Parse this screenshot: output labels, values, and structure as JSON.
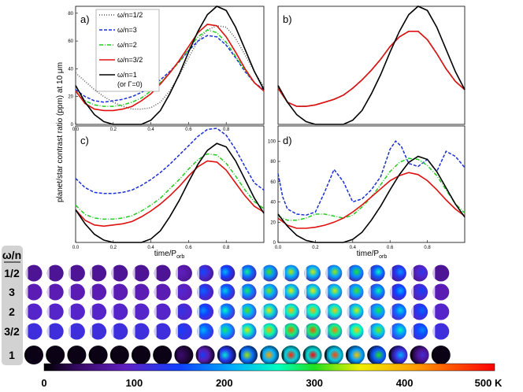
{
  "chart_data": [
    {
      "panel": "a)",
      "type": "line",
      "xlim": [
        0,
        1
      ],
      "ylim": [
        0,
        85
      ],
      "x_ticks": [
        "0.0",
        "0.2",
        "0.4",
        "0.6",
        "0.8"
      ],
      "y_ticks": [
        "0",
        "20",
        "40",
        "60",
        "80"
      ],
      "legend": [
        "ω/n=1/2",
        "ω/n=3",
        "ω/n=2",
        "ω/n=3/2",
        "ω/n=1",
        "(or Γ=0)"
      ],
      "series": [
        {
          "name": "ω/n=1/2",
          "color": "#555555",
          "style": "dotted",
          "x": [
            0,
            0.05,
            0.1,
            0.15,
            0.2,
            0.25,
            0.3,
            0.35,
            0.4,
            0.45,
            0.5,
            0.55,
            0.6,
            0.65,
            0.7,
            0.75,
            0.8,
            0.85,
            0.9,
            0.95,
            1.0
          ],
          "y": [
            37,
            31,
            25,
            20,
            16,
            13,
            11,
            11,
            12,
            16,
            24,
            35,
            48,
            60,
            68,
            71,
            70,
            62,
            50,
            38,
            27
          ]
        },
        {
          "name": "ω/n=3",
          "color": "#1a2fd6",
          "style": "dashed",
          "x": [
            0,
            0.05,
            0.1,
            0.15,
            0.2,
            0.25,
            0.3,
            0.35,
            0.4,
            0.45,
            0.5,
            0.55,
            0.6,
            0.65,
            0.7,
            0.75,
            0.8,
            0.85,
            0.9,
            0.95,
            1.0
          ],
          "y": [
            25,
            20,
            17,
            16,
            17,
            18,
            20,
            23,
            27,
            32,
            38,
            45,
            53,
            60,
            64,
            63,
            57,
            48,
            38,
            30,
            25
          ]
        },
        {
          "name": "ω/n=2",
          "color": "#22cc22",
          "style": "dashdot",
          "x": [
            0,
            0.05,
            0.1,
            0.15,
            0.2,
            0.25,
            0.3,
            0.35,
            0.4,
            0.45,
            0.5,
            0.55,
            0.6,
            0.65,
            0.7,
            0.75,
            0.8,
            0.85,
            0.9,
            0.95,
            1.0
          ],
          "y": [
            24,
            17,
            14,
            13,
            13,
            14,
            16,
            19,
            24,
            30,
            37,
            45,
            54,
            63,
            68,
            66,
            59,
            49,
            39,
            30,
            24
          ]
        },
        {
          "name": "ω/n=3/2",
          "color": "#e01010",
          "style": "solid",
          "x": [
            0,
            0.05,
            0.1,
            0.15,
            0.2,
            0.25,
            0.3,
            0.35,
            0.4,
            0.45,
            0.5,
            0.55,
            0.6,
            0.65,
            0.7,
            0.75,
            0.8,
            0.85,
            0.9,
            0.95,
            1.0
          ],
          "y": [
            24,
            15,
            11,
            10,
            10,
            11,
            13,
            17,
            22,
            29,
            37,
            46,
            56,
            66,
            72,
            71,
            63,
            52,
            40,
            30,
            24
          ]
        },
        {
          "name": "ω/n=1 (or Γ=0)",
          "color": "#000000",
          "style": "solid",
          "x": [
            0,
            0.05,
            0.1,
            0.15,
            0.2,
            0.25,
            0.3,
            0.35,
            0.4,
            0.45,
            0.5,
            0.55,
            0.6,
            0.65,
            0.7,
            0.75,
            0.8,
            0.85,
            0.9,
            0.95,
            1.0
          ],
          "y": [
            28,
            16,
            7,
            2,
            0,
            0,
            0,
            0,
            3,
            10,
            22,
            36,
            52,
            67,
            79,
            85,
            82,
            70,
            54,
            38,
            25
          ]
        }
      ]
    },
    {
      "panel": "b)",
      "type": "line",
      "xlim": [
        0,
        1
      ],
      "ylim": [
        0,
        85
      ],
      "series": [
        {
          "name": "ω/n=3",
          "color": "#1a2fd6",
          "style": "dashed",
          "x": [
            0,
            0.05,
            0.1,
            0.15,
            0.2,
            0.25,
            0.3,
            0.35,
            0.4,
            0.45,
            0.5,
            0.55,
            0.6,
            0.65,
            0.7,
            0.75,
            0.8,
            0.85,
            0.9,
            0.95,
            1.0
          ],
          "y": [
            26,
            16,
            13,
            13,
            14,
            16,
            18,
            21,
            26,
            32,
            39,
            47,
            56,
            63,
            67,
            67,
            61,
            51,
            40,
            31,
            25
          ]
        },
        {
          "name": "ω/n=2",
          "color": "#22cc22",
          "style": "dashdot",
          "x": [
            0,
            0.05,
            0.1,
            0.15,
            0.2,
            0.25,
            0.3,
            0.35,
            0.4,
            0.45,
            0.5,
            0.55,
            0.6,
            0.65,
            0.7,
            0.75,
            0.8,
            0.85,
            0.9,
            0.95,
            1.0
          ],
          "y": [
            26,
            16,
            13,
            13,
            14,
            16,
            18,
            21,
            26,
            32,
            39,
            47,
            56,
            63,
            67,
            67,
            61,
            51,
            40,
            31,
            25
          ]
        },
        {
          "name": "ω/n=3/2",
          "color": "#e01010",
          "style": "solid",
          "x": [
            0,
            0.05,
            0.1,
            0.15,
            0.2,
            0.25,
            0.3,
            0.35,
            0.4,
            0.45,
            0.5,
            0.55,
            0.6,
            0.65,
            0.7,
            0.75,
            0.8,
            0.85,
            0.9,
            0.95,
            1.0
          ],
          "y": [
            26,
            16,
            13,
            13,
            14,
            16,
            18,
            21,
            26,
            32,
            39,
            47,
            56,
            63,
            67,
            67,
            61,
            51,
            40,
            31,
            25
          ]
        },
        {
          "name": "ω/n=1 (or Γ=0)",
          "color": "#000000",
          "style": "solid",
          "x": [
            0,
            0.05,
            0.1,
            0.15,
            0.2,
            0.25,
            0.3,
            0.35,
            0.4,
            0.45,
            0.5,
            0.55,
            0.6,
            0.65,
            0.7,
            0.75,
            0.8,
            0.85,
            0.9,
            0.95,
            1.0
          ],
          "y": [
            28,
            16,
            7,
            2,
            0,
            0,
            0,
            0,
            3,
            10,
            22,
            36,
            52,
            67,
            79,
            85,
            82,
            70,
            54,
            38,
            25
          ]
        }
      ]
    },
    {
      "panel": "c)",
      "type": "line",
      "xlim": [
        0,
        1
      ],
      "ylim": [
        0,
        100
      ],
      "x_ticks": [
        "0.0",
        "0.2",
        "0.4",
        "0.6",
        "0.8"
      ],
      "series": [
        {
          "name": "ω/n=3",
          "color": "#1a2fd6",
          "style": "dashed",
          "x": [
            0,
            0.05,
            0.1,
            0.15,
            0.2,
            0.25,
            0.3,
            0.35,
            0.4,
            0.45,
            0.5,
            0.55,
            0.6,
            0.65,
            0.7,
            0.75,
            0.8,
            0.85,
            0.9,
            0.95,
            1.0
          ],
          "y": [
            55,
            47,
            43,
            42,
            42,
            43,
            45,
            49,
            54,
            60,
            67,
            75,
            83,
            91,
            97,
            98,
            92,
            80,
            65,
            51,
            45
          ]
        },
        {
          "name": "ω/n=2",
          "color": "#22cc22",
          "style": "dashdot",
          "x": [
            0,
            0.05,
            0.1,
            0.15,
            0.2,
            0.25,
            0.3,
            0.35,
            0.4,
            0.45,
            0.5,
            0.55,
            0.6,
            0.65,
            0.7,
            0.75,
            0.8,
            0.85,
            0.9,
            0.95,
            1.0
          ],
          "y": [
            32,
            24,
            21,
            20,
            20,
            21,
            23,
            27,
            32,
            38,
            46,
            54,
            63,
            71,
            76,
            75,
            68,
            57,
            45,
            35,
            29
          ]
        },
        {
          "name": "ω/n=3/2",
          "color": "#e01010",
          "style": "solid",
          "x": [
            0,
            0.05,
            0.1,
            0.15,
            0.2,
            0.25,
            0.3,
            0.35,
            0.4,
            0.45,
            0.5,
            0.55,
            0.6,
            0.65,
            0.7,
            0.75,
            0.8,
            0.85,
            0.9,
            0.95,
            1.0
          ],
          "y": [
            28,
            19,
            15,
            14,
            15,
            16,
            18,
            22,
            27,
            33,
            40,
            48,
            57,
            65,
            70,
            69,
            62,
            51,
            40,
            31,
            26
          ]
        },
        {
          "name": "ω/n=1 (or Γ=0)",
          "color": "#000000",
          "style": "solid",
          "x": [
            0,
            0.05,
            0.1,
            0.15,
            0.2,
            0.25,
            0.3,
            0.35,
            0.4,
            0.45,
            0.5,
            0.55,
            0.6,
            0.65,
            0.7,
            0.75,
            0.8,
            0.85,
            0.9,
            0.95,
            1.0
          ],
          "y": [
            28,
            16,
            7,
            2,
            0,
            0,
            0,
            0,
            3,
            10,
            22,
            36,
            52,
            67,
            79,
            85,
            82,
            70,
            54,
            38,
            25
          ]
        }
      ]
    },
    {
      "panel": "d)",
      "type": "line",
      "xlim": [
        0,
        1
      ],
      "ylim": [
        0,
        115
      ],
      "x_ticks": [
        "0.0",
        "0.2",
        "0.4",
        "0.6",
        "0.8"
      ],
      "y_ticks": [
        "0",
        "20",
        "40",
        "60",
        "80",
        "100"
      ],
      "series": [
        {
          "name": "ω/n=3",
          "color": "#1a2fd6",
          "style": "dashed",
          "x": [
            0,
            0.025,
            0.05,
            0.1,
            0.15,
            0.2,
            0.25,
            0.3,
            0.35,
            0.4,
            0.45,
            0.5,
            0.55,
            0.6,
            0.63,
            0.66,
            0.7,
            0.75,
            0.8,
            0.85,
            0.9,
            0.95,
            1.0
          ],
          "y": [
            68,
            45,
            33,
            28,
            27,
            30,
            50,
            72,
            60,
            40,
            43,
            52,
            65,
            92,
            100,
            95,
            78,
            75,
            82,
            70,
            90,
            85,
            74
          ]
        },
        {
          "name": "ω/n=2",
          "color": "#22cc22",
          "style": "dashdot",
          "x": [
            0,
            0.05,
            0.1,
            0.15,
            0.2,
            0.25,
            0.3,
            0.35,
            0.4,
            0.45,
            0.5,
            0.55,
            0.6,
            0.65,
            0.7,
            0.75,
            0.8,
            0.85,
            0.9,
            0.95,
            1.0
          ],
          "y": [
            26,
            22,
            22,
            24,
            28,
            28,
            26,
            24,
            27,
            35,
            45,
            57,
            70,
            79,
            83,
            82,
            76,
            66,
            52,
            38,
            29
          ]
        },
        {
          "name": "ω/n=3/2",
          "color": "#e01010",
          "style": "solid",
          "x": [
            0,
            0.05,
            0.1,
            0.15,
            0.2,
            0.25,
            0.3,
            0.35,
            0.4,
            0.45,
            0.5,
            0.55,
            0.6,
            0.65,
            0.7,
            0.75,
            0.8,
            0.85,
            0.9,
            0.95,
            1.0
          ],
          "y": [
            24,
            17,
            14,
            14,
            15,
            17,
            20,
            24,
            30,
            37,
            45,
            53,
            61,
            66,
            69,
            67,
            61,
            52,
            42,
            33,
            26
          ]
        },
        {
          "name": "ω/n=1 (or Γ=0)",
          "color": "#000000",
          "style": "solid",
          "x": [
            0,
            0.05,
            0.1,
            0.15,
            0.2,
            0.25,
            0.3,
            0.35,
            0.4,
            0.45,
            0.5,
            0.55,
            0.6,
            0.65,
            0.7,
            0.75,
            0.8,
            0.85,
            0.9,
            0.95,
            1.0
          ],
          "y": [
            28,
            16,
            7,
            2,
            0,
            0,
            0,
            0,
            3,
            10,
            22,
            36,
            52,
            67,
            79,
            85,
            82,
            70,
            54,
            38,
            25
          ]
        }
      ]
    },
    {
      "type": "heatmap",
      "row_header": "ω/n",
      "rows": [
        "1/2",
        "3",
        "2",
        "3/2",
        "1"
      ],
      "columns": 20,
      "colorbar": {
        "ticks": [
          "0",
          "100",
          "200",
          "300",
          "400",
          "500 K"
        ],
        "range": [
          0,
          500
        ]
      }
    }
  ],
  "ylabel": "planet/star contrast ratio (ppm) at 10 μm",
  "xlabel_main": "time/P",
  "xlabel_sub": "orb"
}
